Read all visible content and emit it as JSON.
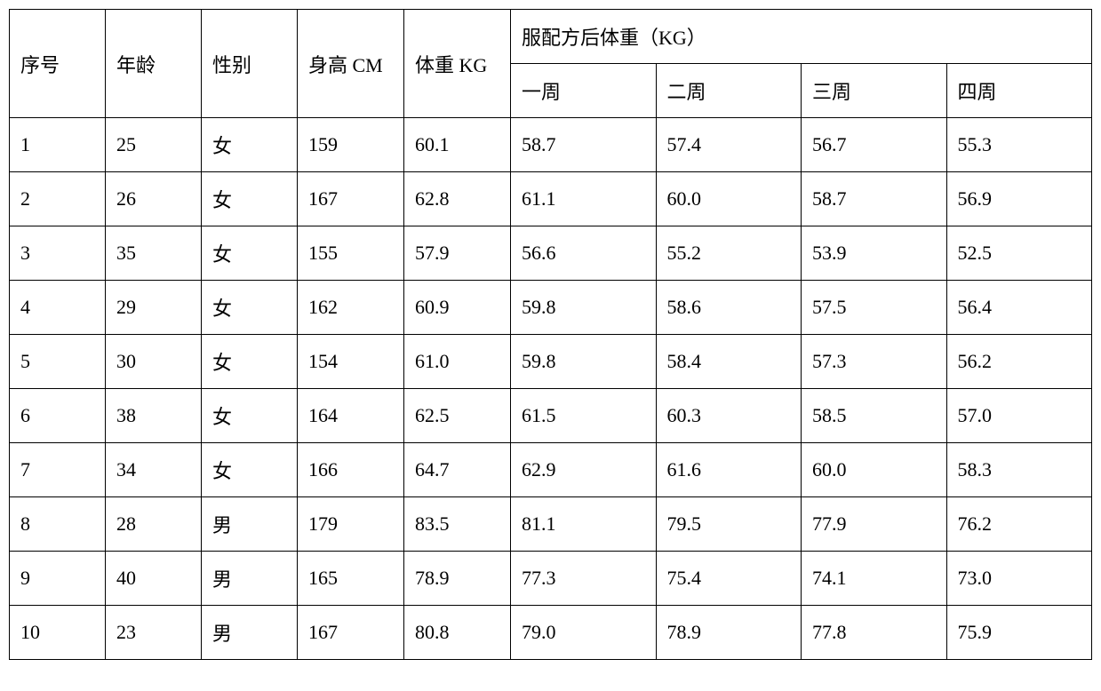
{
  "table": {
    "type": "table",
    "background_color": "#ffffff",
    "border_color": "#000000",
    "text_color": "#000000",
    "font_size": 22,
    "cell_padding": "14px 12px",
    "column_widths": {
      "seq": 108,
      "age": 108,
      "gender": 108,
      "height": 120,
      "weight": 120,
      "week": 108
    },
    "headers": {
      "seq": "序号",
      "age": "年龄",
      "gender": "性别",
      "height": "身高 CM",
      "weight": "体重 KG",
      "after_formula_weight": "服配方后体重（KG）",
      "week1": "一周",
      "week2": "二周",
      "week3": "三周",
      "week4": "四周"
    },
    "rows": [
      {
        "seq": "1",
        "age": "25",
        "gender": "女",
        "height": "159",
        "weight": "60.1",
        "week1": "58.7",
        "week2": "57.4",
        "week3": "56.7",
        "week4": "55.3"
      },
      {
        "seq": "2",
        "age": "26",
        "gender": "女",
        "height": "167",
        "weight": "62.8",
        "week1": "61.1",
        "week2": "60.0",
        "week3": "58.7",
        "week4": "56.9"
      },
      {
        "seq": "3",
        "age": "35",
        "gender": "女",
        "height": "155",
        "weight": "57.9",
        "week1": "56.6",
        "week2": "55.2",
        "week3": "53.9",
        "week4": "52.5"
      },
      {
        "seq": "4",
        "age": "29",
        "gender": "女",
        "height": "162",
        "weight": "60.9",
        "week1": "59.8",
        "week2": "58.6",
        "week3": "57.5",
        "week4": "56.4"
      },
      {
        "seq": "5",
        "age": "30",
        "gender": "女",
        "height": "154",
        "weight": "61.0",
        "week1": "59.8",
        "week2": "58.4",
        "week3": "57.3",
        "week4": "56.2"
      },
      {
        "seq": "6",
        "age": "38",
        "gender": "女",
        "height": "164",
        "weight": "62.5",
        "week1": "61.5",
        "week2": "60.3",
        "week3": "58.5",
        "week4": "57.0"
      },
      {
        "seq": "7",
        "age": "34",
        "gender": "女",
        "height": "166",
        "weight": "64.7",
        "week1": "62.9",
        "week2": "61.6",
        "week3": "60.0",
        "week4": "58.3"
      },
      {
        "seq": "8",
        "age": "28",
        "gender": "男",
        "height": "179",
        "weight": "83.5",
        "week1": "81.1",
        "week2": "79.5",
        "week3": "77.9",
        "week4": "76.2"
      },
      {
        "seq": "9",
        "age": "40",
        "gender": "男",
        "height": "165",
        "weight": "78.9",
        "week1": "77.3",
        "week2": "75.4",
        "week3": "74.1",
        "week4": "73.0"
      },
      {
        "seq": "10",
        "age": "23",
        "gender": "男",
        "height": "167",
        "weight": "80.8",
        "week1": "79.0",
        "week2": "78.9",
        "week3": "77.8",
        "week4": "75.9"
      }
    ]
  }
}
